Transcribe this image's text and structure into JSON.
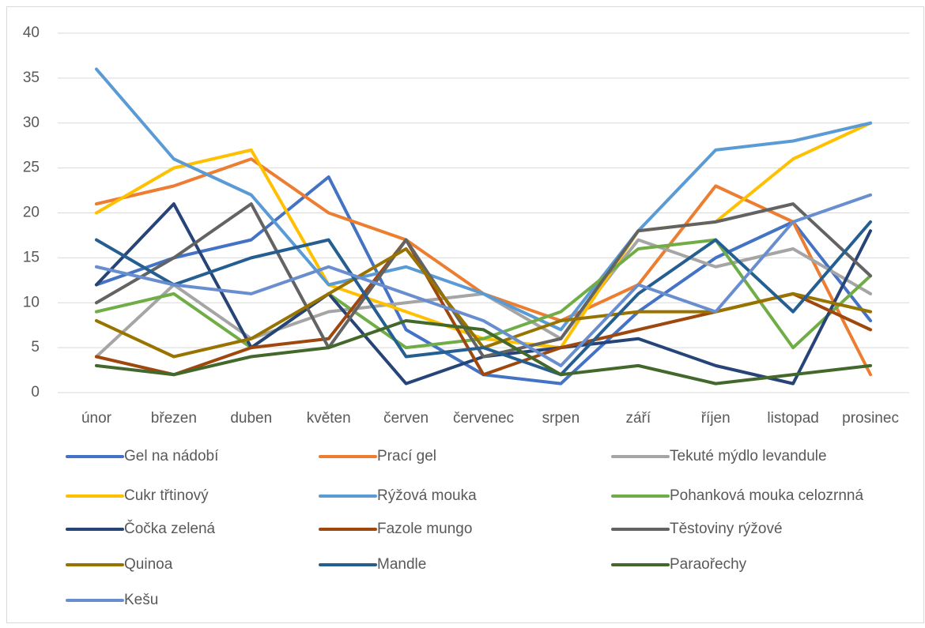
{
  "chart_data": {
    "type": "line",
    "categories": [
      "únor",
      "březen",
      "duben",
      "květen",
      "červen",
      "červenec",
      "srpen",
      "září",
      "říjen",
      "listopad",
      "prosinec"
    ],
    "ylim": [
      0,
      40
    ],
    "yticks": [
      0,
      5,
      10,
      15,
      20,
      25,
      30,
      35,
      40
    ],
    "grid": true,
    "legend": "bottom",
    "series": [
      {
        "name": "Gel na nádobí",
        "color": "#4472c4",
        "values": [
          12,
          15,
          17,
          24,
          7,
          2,
          1,
          9,
          15,
          19,
          8
        ]
      },
      {
        "name": "Prací gel",
        "color": "#ed7d31",
        "values": [
          21,
          23,
          26,
          20,
          17,
          11,
          8,
          12,
          23,
          19,
          2
        ]
      },
      {
        "name": "Tekuté mýdlo levandule",
        "color": "#a5a5a5",
        "values": [
          4,
          12,
          6,
          9,
          10,
          11,
          6,
          17,
          14,
          16,
          11
        ]
      },
      {
        "name": "Cukr třtinový",
        "color": "#ffc000",
        "values": [
          20,
          25,
          27,
          12,
          9,
          6,
          5,
          18,
          19,
          26,
          30
        ]
      },
      {
        "name": "Rýžová mouka",
        "color": "#5b9bd5",
        "values": [
          36,
          26,
          22,
          12,
          14,
          11,
          7,
          18,
          27,
          28,
          30
        ]
      },
      {
        "name": "Pohanková mouka celozrnná",
        "color": "#70ad47",
        "values": [
          9,
          11,
          5,
          11,
          5,
          6,
          9,
          16,
          17,
          5,
          13
        ]
      },
      {
        "name": "Čočka zelená",
        "color": "#264478",
        "values": [
          12,
          21,
          5,
          11,
          1,
          4,
          5,
          6,
          3,
          1,
          18
        ]
      },
      {
        "name": "Fazole mungo",
        "color": "#9e480e",
        "values": [
          4,
          2,
          5,
          6,
          17,
          2,
          5,
          7,
          9,
          11,
          7
        ]
      },
      {
        "name": "Těstoviny rýžové",
        "color": "#636363",
        "values": [
          10,
          15,
          21,
          5,
          17,
          4,
          6,
          18,
          19,
          21,
          13
        ]
      },
      {
        "name": "Quinoa",
        "color": "#997300",
        "values": [
          8,
          4,
          6,
          11,
          16,
          5,
          8,
          9,
          9,
          11,
          9
        ]
      },
      {
        "name": "Mandle",
        "color": "#255e91",
        "values": [
          17,
          12,
          15,
          17,
          4,
          5,
          2,
          11,
          17,
          9,
          19
        ]
      },
      {
        "name": "Paraořechy",
        "color": "#43682b",
        "values": [
          3,
          2,
          4,
          5,
          8,
          7,
          2,
          3,
          1,
          2,
          3
        ]
      },
      {
        "name": "Kešu",
        "color": "#698ed0",
        "values": [
          14,
          12,
          11,
          14,
          11,
          8,
          3,
          12,
          9,
          19,
          22
        ]
      }
    ]
  }
}
